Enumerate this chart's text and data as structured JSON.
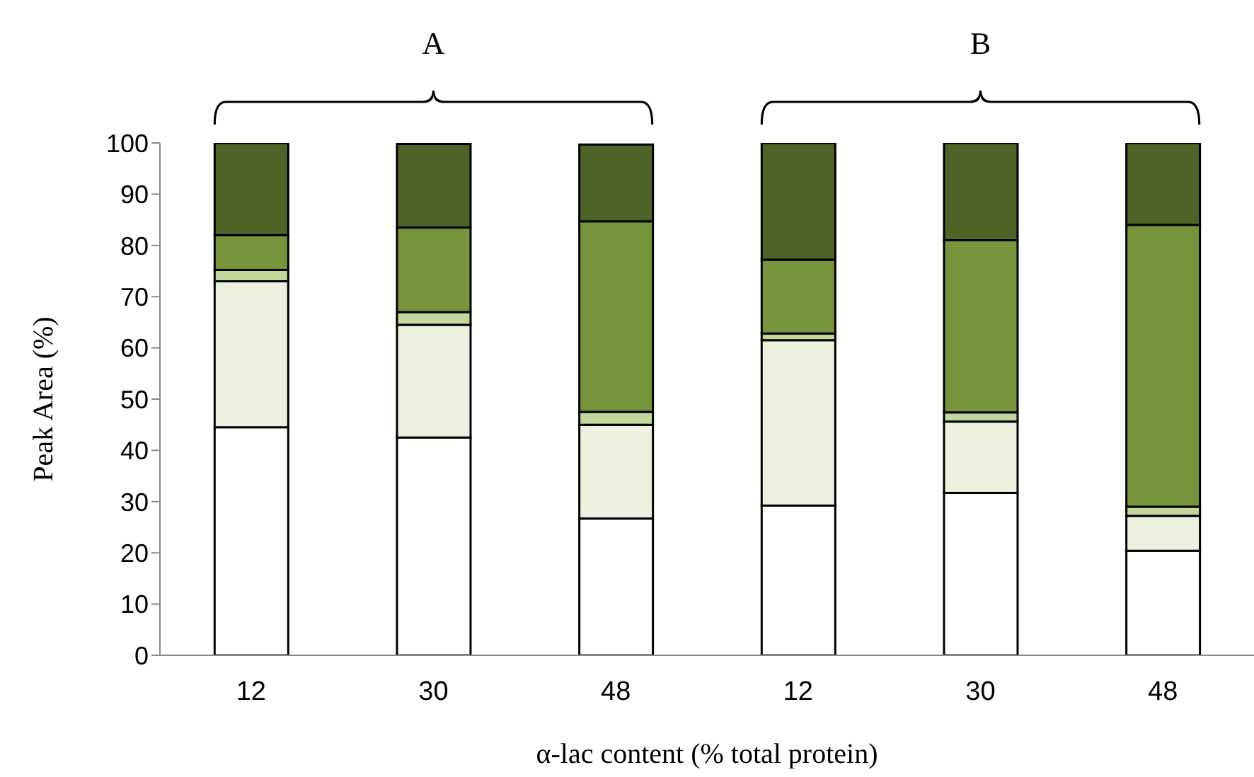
{
  "chart_data": {
    "type": "bar",
    "stacked": true,
    "xlabel": "α-lac content (% total protein)",
    "ylabel": "Peak Area (%)",
    "categories": [
      "12",
      "30",
      "48",
      "12",
      "30",
      "48"
    ],
    "series": [
      {
        "color": "#ffffff",
        "values": [
          44.5,
          42.5,
          26.7,
          29.2,
          31.7,
          20.4
        ]
      },
      {
        "color": "#ebf1de",
        "values": [
          28.5,
          22,
          18.3,
          32.3,
          13.9,
          6.8
        ]
      },
      {
        "color": "#c3d69b",
        "values": [
          2.2,
          2.5,
          2.5,
          1.3,
          1.8,
          1.8
        ]
      },
      {
        "color": "#77933c",
        "values": [
          6.8,
          16.5,
          37.2,
          14.4,
          33.6,
          55
        ]
      },
      {
        "color": "#4f6228",
        "values": [
          18,
          16.3,
          15,
          22.8,
          19,
          16
        ]
      }
    ],
    "ylim": [
      0,
      100
    ],
    "yticks": [
      0,
      10,
      20,
      30,
      40,
      50,
      60,
      70,
      80,
      90,
      100
    ],
    "grid": false,
    "annotations": [
      "A",
      "B"
    ]
  }
}
